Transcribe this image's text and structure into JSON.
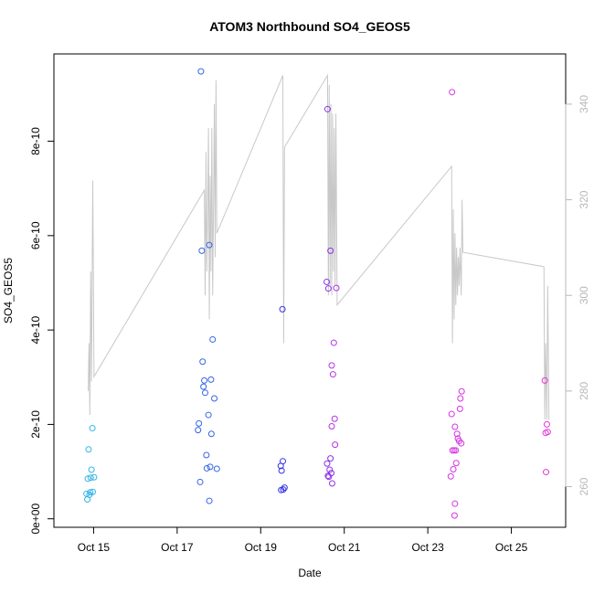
{
  "chart_data": {
    "type": "scatter",
    "title": "ATOM3 Northbound SO4_GEOS5",
    "xlabel": "Date",
    "ylabel": "SO4_GEOS5",
    "x_ticks": [
      {
        "day": 14.85,
        "label": "Oct 15"
      },
      {
        "day": 16.85,
        "label": "Oct 17"
      },
      {
        "day": 18.85,
        "label": "Oct 19"
      },
      {
        "day": 20.85,
        "label": "Oct 21"
      },
      {
        "day": 22.85,
        "label": "Oct 23"
      },
      {
        "day": 24.85,
        "label": "Oct 25"
      }
    ],
    "y_ticks": [
      {
        "value": 0,
        "label": "0e+00"
      },
      {
        "value": 2e-10,
        "label": "2e-10"
      },
      {
        "value": 4e-10,
        "label": "4e-10"
      },
      {
        "value": 6e-10,
        "label": "6e-10"
      },
      {
        "value": 8e-10,
        "label": "8e-10"
      }
    ],
    "y2_ticks": [
      {
        "value": 260,
        "label": "260"
      },
      {
        "value": 280,
        "label": "280"
      },
      {
        "value": 300,
        "label": "300"
      },
      {
        "value": 320,
        "label": "320"
      },
      {
        "value": 340,
        "label": "340"
      }
    ],
    "xlim": [
      13.9,
      26.15
    ],
    "ylim": [
      -1.8e-11,
      9.85e-10
    ],
    "y2lim": [
      251.5,
      350.5
    ],
    "grid": false,
    "colors": {
      "line": "#c8c8c8",
      "axis": "#000000",
      "right_axis": "#b8b8b8"
    },
    "series": [
      {
        "type": "scatter",
        "points": [
          {
            "x": 14.68,
            "y": 5.3e-11,
            "color": "#33b4e6"
          },
          {
            "x": 14.7,
            "y": 4.1e-11,
            "color": "#33b4e6"
          },
          {
            "x": 14.71,
            "y": 8.5e-11,
            "color": "#33b4e6"
          },
          {
            "x": 14.73,
            "y": 1.47e-10,
            "color": "#33b4e6"
          },
          {
            "x": 14.75,
            "y": 5.1e-11,
            "color": "#33b4e6"
          },
          {
            "x": 14.77,
            "y": 5.6e-11,
            "color": "#33b4e6"
          },
          {
            "x": 14.78,
            "y": 8.7e-11,
            "color": "#33b4e6"
          },
          {
            "x": 14.8,
            "y": 1.04e-10,
            "color": "#33b4e6"
          },
          {
            "x": 14.82,
            "y": 1.92e-10,
            "color": "#33b4e6"
          },
          {
            "x": 14.83,
            "y": 5.7e-11,
            "color": "#33b4e6"
          },
          {
            "x": 14.86,
            "y": 8.8e-11,
            "color": "#33b4e6"
          },
          {
            "x": 17.42,
            "y": 9.48e-10,
            "color": "#3366e6"
          },
          {
            "x": 17.35,
            "y": 1.88e-10,
            "color": "#3366e6"
          },
          {
            "x": 17.37,
            "y": 2.02e-10,
            "color": "#3366e6"
          },
          {
            "x": 17.4,
            "y": 7.8e-11,
            "color": "#3366e6"
          },
          {
            "x": 17.44,
            "y": 5.68e-10,
            "color": "#3366e6"
          },
          {
            "x": 17.46,
            "y": 3.33e-10,
            "color": "#3366e6"
          },
          {
            "x": 17.48,
            "y": 2.8e-10,
            "color": "#3366e6"
          },
          {
            "x": 17.5,
            "y": 2.93e-10,
            "color": "#3366e6"
          },
          {
            "x": 17.52,
            "y": 2.67e-10,
            "color": "#3366e6"
          },
          {
            "x": 17.55,
            "y": 1.35e-10,
            "color": "#3366e6"
          },
          {
            "x": 17.56,
            "y": 1.07e-10,
            "color": "#3366e6"
          },
          {
            "x": 17.6,
            "y": 2.2e-10,
            "color": "#3366e6"
          },
          {
            "x": 17.62,
            "y": 5.8e-10,
            "color": "#3366e6"
          },
          {
            "x": 17.64,
            "y": 1.1e-10,
            "color": "#3366e6"
          },
          {
            "x": 17.66,
            "y": 2.95e-10,
            "color": "#3366e6"
          },
          {
            "x": 17.67,
            "y": 1.8e-10,
            "color": "#3366e6"
          },
          {
            "x": 17.7,
            "y": 3.8e-10,
            "color": "#3366e6"
          },
          {
            "x": 17.74,
            "y": 2.55e-10,
            "color": "#3366e6"
          },
          {
            "x": 17.8,
            "y": 1.06e-10,
            "color": "#3366e6"
          },
          {
            "x": 17.62,
            "y": 3.8e-11,
            "color": "#3366e6"
          },
          {
            "x": 19.37,
            "y": 4.44e-10,
            "color": "#3333e6"
          },
          {
            "x": 19.33,
            "y": 1.12e-10,
            "color": "#3333e6"
          },
          {
            "x": 19.35,
            "y": 1.02e-10,
            "color": "#3333e6"
          },
          {
            "x": 19.38,
            "y": 1.22e-10,
            "color": "#3333e6"
          },
          {
            "x": 19.39,
            "y": 6.2e-11,
            "color": "#3333e6"
          },
          {
            "x": 19.42,
            "y": 6.6e-11,
            "color": "#3333e6"
          },
          {
            "x": 19.34,
            "y": 6.1e-11,
            "color": "#3333e6"
          },
          {
            "x": 20.45,
            "y": 8.68e-10,
            "color": "#8c33e6"
          },
          {
            "x": 20.43,
            "y": 5.02e-10,
            "color": "#8c33e6"
          },
          {
            "x": 20.47,
            "y": 4.88e-10,
            "color": "#8c33e6"
          },
          {
            "x": 20.52,
            "y": 5.68e-10,
            "color": "#8c33e6"
          },
          {
            "x": 20.44,
            "y": 1.17e-10,
            "color": "#8c33e6"
          },
          {
            "x": 20.46,
            "y": 9.1e-11,
            "color": "#8c33e6"
          },
          {
            "x": 20.48,
            "y": 8.9e-11,
            "color": "#8c33e6"
          },
          {
            "x": 20.5,
            "y": 1.04e-10,
            "color": "#8c33e6"
          },
          {
            "x": 20.52,
            "y": 1.28e-10,
            "color": "#8c33e6"
          },
          {
            "x": 20.54,
            "y": 9.7e-11,
            "color": "#8c33e6"
          },
          {
            "x": 20.56,
            "y": 7.5e-11,
            "color": "#8c33e6"
          },
          {
            "x": 20.55,
            "y": 3.25e-10,
            "color": "#b333e6"
          },
          {
            "x": 20.58,
            "y": 3.06e-10,
            "color": "#b333e6"
          },
          {
            "x": 20.6,
            "y": 3.73e-10,
            "color": "#b333e6"
          },
          {
            "x": 20.55,
            "y": 1.96e-10,
            "color": "#b333e6"
          },
          {
            "x": 20.62,
            "y": 2.12e-10,
            "color": "#b333e6"
          },
          {
            "x": 20.63,
            "y": 1.57e-10,
            "color": "#b333e6"
          },
          {
            "x": 20.66,
            "y": 4.89e-10,
            "color": "#b333e6"
          },
          {
            "x": 23.43,
            "y": 9.04e-10,
            "color": "#d633e6"
          },
          {
            "x": 23.42,
            "y": 2.22e-10,
            "color": "#d633e6"
          },
          {
            "x": 23.44,
            "y": 1.45e-10,
            "color": "#d633e6"
          },
          {
            "x": 23.4,
            "y": 9e-11,
            "color": "#d633e6"
          },
          {
            "x": 23.46,
            "y": 1.05e-10,
            "color": "#d633e6"
          },
          {
            "x": 23.48,
            "y": 1.45e-10,
            "color": "#d633e6"
          },
          {
            "x": 23.5,
            "y": 1.95e-10,
            "color": "#d633e6"
          },
          {
            "x": 23.52,
            "y": 1.45e-10,
            "color": "#d633e6"
          },
          {
            "x": 23.53,
            "y": 1.18e-10,
            "color": "#d633e6"
          },
          {
            "x": 23.55,
            "y": 1.8e-10,
            "color": "#d633e6"
          },
          {
            "x": 23.57,
            "y": 1.7e-10,
            "color": "#d633e6"
          },
          {
            "x": 23.6,
            "y": 1.65e-10,
            "color": "#d633e6"
          },
          {
            "x": 23.62,
            "y": 2.33e-10,
            "color": "#d633e6"
          },
          {
            "x": 23.63,
            "y": 2.55e-10,
            "color": "#d633e6"
          },
          {
            "x": 23.66,
            "y": 2.7e-10,
            "color": "#d633e6"
          },
          {
            "x": 23.65,
            "y": 1.6e-10,
            "color": "#d633e6"
          },
          {
            "x": 23.5,
            "y": 3.2e-11,
            "color": "#d633e6"
          },
          {
            "x": 23.49,
            "y": 7e-12,
            "color": "#d633e6"
          },
          {
            "x": 25.65,
            "y": 2.93e-10,
            "color": "#e633d9"
          },
          {
            "x": 25.67,
            "y": 1.82e-10,
            "color": "#e633d9"
          },
          {
            "x": 25.7,
            "y": 2e-10,
            "color": "#e633d9"
          },
          {
            "x": 25.72,
            "y": 1.84e-10,
            "color": "#e633d9"
          },
          {
            "x": 25.68,
            "y": 9.9e-11,
            "color": "#e633d9"
          }
        ]
      },
      {
        "type": "line",
        "axis": "right",
        "points": [
          [
            14.72,
            280
          ],
          [
            14.74,
            290
          ],
          [
            14.76,
            275
          ],
          [
            14.78,
            305
          ],
          [
            14.8,
            282
          ],
          [
            14.83,
            324
          ],
          [
            14.86,
            283
          ],
          [
            17.5,
            322
          ],
          [
            17.52,
            300
          ],
          [
            17.54,
            330
          ],
          [
            17.56,
            305
          ],
          [
            17.58,
            318
          ],
          [
            17.6,
            335
          ],
          [
            17.62,
            295
          ],
          [
            17.64,
            325
          ],
          [
            17.66,
            305
          ],
          [
            17.68,
            335
          ],
          [
            17.7,
            300
          ],
          [
            17.72,
            318
          ],
          [
            17.74,
            340
          ],
          [
            17.76,
            308
          ],
          [
            17.78,
            345
          ],
          [
            17.8,
            313
          ],
          [
            19.38,
            346
          ],
          [
            19.4,
            290
          ],
          [
            19.42,
            331
          ],
          [
            20.45,
            346
          ],
          [
            20.47,
            300
          ],
          [
            20.49,
            344
          ],
          [
            20.51,
            302
          ],
          [
            20.53,
            340
          ],
          [
            20.55,
            300
          ],
          [
            20.57,
            338
          ],
          [
            20.59,
            305
          ],
          [
            20.61,
            335
          ],
          [
            20.63,
            302
          ],
          [
            20.65,
            338
          ],
          [
            20.68,
            298
          ],
          [
            23.42,
            327
          ],
          [
            23.44,
            290
          ],
          [
            23.46,
            318
          ],
          [
            23.48,
            295
          ],
          [
            23.5,
            313
          ],
          [
            23.52,
            298
          ],
          [
            23.54,
            310
          ],
          [
            23.56,
            300
          ],
          [
            23.58,
            308
          ],
          [
            23.6,
            302
          ],
          [
            23.62,
            310
          ],
          [
            23.65,
            300
          ],
          [
            23.67,
            320
          ],
          [
            23.69,
            309
          ],
          [
            25.63,
            306
          ],
          [
            25.65,
            274
          ],
          [
            25.67,
            290
          ],
          [
            25.7,
            274
          ],
          [
            25.72,
            302
          ],
          [
            25.75,
            274
          ]
        ]
      }
    ]
  }
}
